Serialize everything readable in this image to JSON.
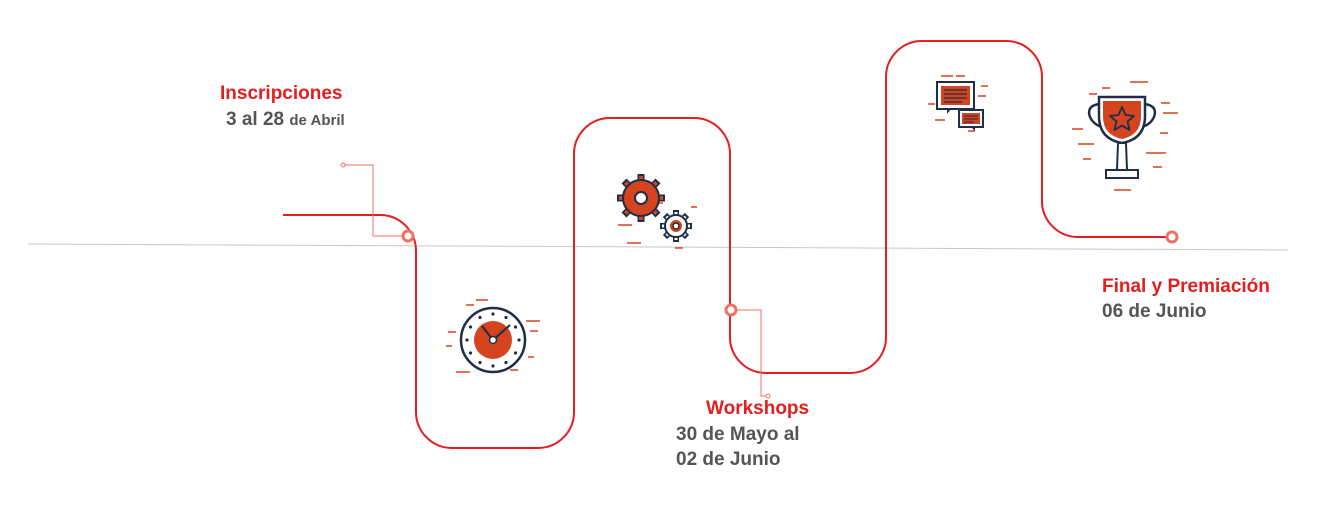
{
  "colors": {
    "path": "#e41e1e",
    "accent": "#d4441e",
    "navy": "#1e2d48",
    "marker": "#f07262",
    "baseline": "#c8c8c8",
    "muted": "#555555"
  },
  "milestones": [
    {
      "title": "Inscripciones",
      "date_number": "3 al 28",
      "date_suffix": "de Abril",
      "icon": "clock-icon"
    },
    {
      "title": "Workshops",
      "date_line1": "30 de Mayo al",
      "date_line2": "02 de Junio",
      "icon": "gears-icon"
    },
    {
      "title": "Final y Premiación",
      "date": "06 de Junio",
      "icons": [
        "presentation-icon",
        "trophy-icon"
      ]
    }
  ]
}
